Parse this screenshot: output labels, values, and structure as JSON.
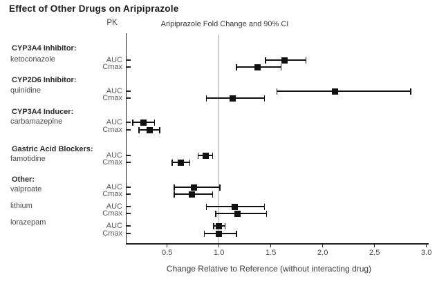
{
  "title": "Effect of Other Drugs on Aripiprazole",
  "plot": {
    "pk_header": "PK",
    "header": "Aripiprazole Fold Change and 90% CI",
    "xlabel": "Change Relative to Reference (without interacting drug)"
  },
  "colors": {
    "marker": "#111111",
    "axis": "#222222",
    "reference_line": "#a9a9a9"
  },
  "chart_data": {
    "type": "scatter",
    "subtype": "forest-plot",
    "title": "Effect of Other Drugs on Aripiprazole",
    "xlabel": "Change Relative to Reference (without interacting drug)",
    "ci_level": "90%",
    "x_axis": {
      "min": 0.1,
      "max": 3.0,
      "ticks": [
        0.5,
        1.0,
        1.5,
        2.0,
        2.5,
        3.0
      ],
      "reference_line": 1.0,
      "grid": false
    },
    "groups": [
      {
        "header": "CYP3A4 Inhibitor:",
        "drug": "ketoconazole",
        "rows": [
          {
            "pk": "AUC",
            "value": 1.63,
            "ci_low": 1.45,
            "ci_high": 1.84
          },
          {
            "pk": "Cmax",
            "value": 1.37,
            "ci_low": 1.17,
            "ci_high": 1.6
          }
        ]
      },
      {
        "header": "CYP2D6 Inhibitor:",
        "drug": "quinidine",
        "rows": [
          {
            "pk": "AUC",
            "value": 2.12,
            "ci_low": 1.56,
            "ci_high": 2.85
          },
          {
            "pk": "Cmax",
            "value": 1.13,
            "ci_low": 0.88,
            "ci_high": 1.44
          }
        ]
      },
      {
        "header": "CYP3A4 Inducer:",
        "drug": "carbamazepine",
        "rows": [
          {
            "pk": "AUC",
            "value": 0.27,
            "ci_low": 0.17,
            "ci_high": 0.38
          },
          {
            "pk": "Cmax",
            "value": 0.33,
            "ci_low": 0.23,
            "ci_high": 0.43
          }
        ]
      },
      {
        "header": "Gastric Acid Blockers:",
        "drug": "famotidine",
        "rows": [
          {
            "pk": "AUC",
            "value": 0.87,
            "ci_low": 0.8,
            "ci_high": 0.94
          },
          {
            "pk": "Cmax",
            "value": 0.63,
            "ci_low": 0.55,
            "ci_high": 0.72
          }
        ]
      },
      {
        "header": "Other:",
        "drug": "valproate",
        "rows": [
          {
            "pk": "AUC",
            "value": 0.76,
            "ci_low": 0.57,
            "ci_high": 1.01
          },
          {
            "pk": "Cmax",
            "value": 0.74,
            "ci_low": 0.57,
            "ci_high": 0.94
          }
        ]
      },
      {
        "header": "",
        "drug": "lithium",
        "rows": [
          {
            "pk": "AUC",
            "value": 1.15,
            "ci_low": 0.88,
            "ci_high": 1.44
          },
          {
            "pk": "Cmax",
            "value": 1.18,
            "ci_low": 0.97,
            "ci_high": 1.46
          }
        ]
      },
      {
        "header": "",
        "drug": "lorazepam",
        "rows": [
          {
            "pk": "AUC",
            "value": 1.0,
            "ci_low": 0.95,
            "ci_high": 1.06
          },
          {
            "pk": "Cmax",
            "value": 1.0,
            "ci_low": 0.86,
            "ci_high": 1.17
          }
        ]
      }
    ]
  }
}
